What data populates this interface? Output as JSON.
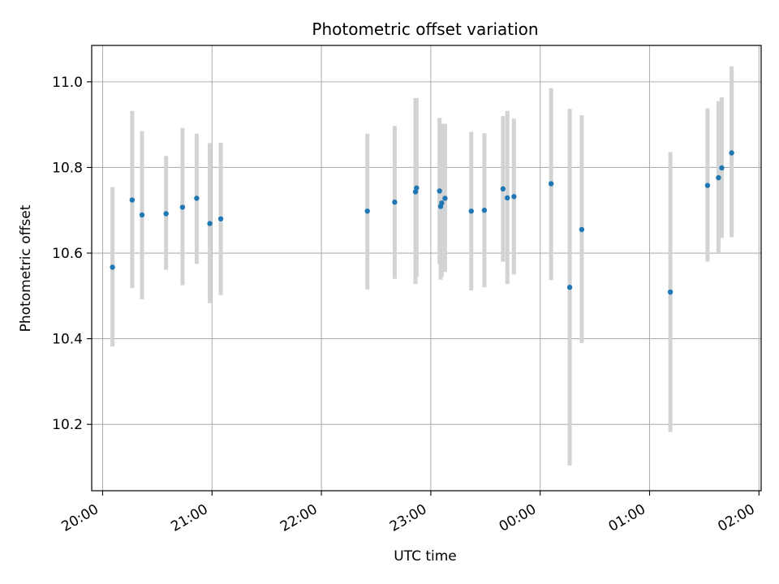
{
  "chart_data": {
    "type": "scatter",
    "title": "Photometric offset variation",
    "xlabel": "UTC time",
    "ylabel": "Photometric offset",
    "x_unit": "hours (UTC, continuing past midnight)",
    "xlim": [
      19.9,
      26.02
    ],
    "ylim": [
      10.045,
      11.085
    ],
    "x_ticks": [
      {
        "value": 20,
        "label": "20:00"
      },
      {
        "value": 21,
        "label": "21:00"
      },
      {
        "value": 22,
        "label": "22:00"
      },
      {
        "value": 23,
        "label": "23:00"
      },
      {
        "value": 24,
        "label": "00:00"
      },
      {
        "value": 25,
        "label": "01:00"
      },
      {
        "value": 26,
        "label": "02:00"
      }
    ],
    "y_ticks": [
      {
        "value": 10.2,
        "label": "10.2"
      },
      {
        "value": 10.4,
        "label": "10.4"
      },
      {
        "value": 10.6,
        "label": "10.6"
      },
      {
        "value": 10.8,
        "label": "10.8"
      },
      {
        "value": 11.0,
        "label": "11.0"
      }
    ],
    "grid": true,
    "marker_color": "#1f77b4",
    "errorbar_color": "#d3d3d3",
    "points": [
      {
        "x": 20.09,
        "y": 10.567,
        "lo": 10.382,
        "hi": 10.754
      },
      {
        "x": 20.27,
        "y": 10.724,
        "lo": 10.518,
        "hi": 10.932
      },
      {
        "x": 20.36,
        "y": 10.689,
        "lo": 10.492,
        "hi": 10.885
      },
      {
        "x": 20.58,
        "y": 10.692,
        "lo": 10.561,
        "hi": 10.827
      },
      {
        "x": 20.73,
        "y": 10.707,
        "lo": 10.525,
        "hi": 10.892
      },
      {
        "x": 20.86,
        "y": 10.728,
        "lo": 10.575,
        "hi": 10.879
      },
      {
        "x": 20.98,
        "y": 10.669,
        "lo": 10.483,
        "hi": 10.857
      },
      {
        "x": 21.08,
        "y": 10.68,
        "lo": 10.502,
        "hi": 10.858
      },
      {
        "x": 22.42,
        "y": 10.698,
        "lo": 10.515,
        "hi": 10.879
      },
      {
        "x": 22.67,
        "y": 10.719,
        "lo": 10.54,
        "hi": 10.897
      },
      {
        "x": 22.86,
        "y": 10.743,
        "lo": 10.528,
        "hi": 10.962
      },
      {
        "x": 22.87,
        "y": 10.752,
        "lo": 10.545,
        "hi": 10.962
      },
      {
        "x": 23.08,
        "y": 10.745,
        "lo": 10.575,
        "hi": 10.916
      },
      {
        "x": 23.09,
        "y": 10.709,
        "lo": 10.538,
        "hi": 10.896
      },
      {
        "x": 23.1,
        "y": 10.717,
        "lo": 10.545,
        "hi": 10.902
      },
      {
        "x": 23.13,
        "y": 10.728,
        "lo": 10.556,
        "hi": 10.902
      },
      {
        "x": 23.37,
        "y": 10.698,
        "lo": 10.513,
        "hi": 10.883
      },
      {
        "x": 23.49,
        "y": 10.7,
        "lo": 10.52,
        "hi": 10.88
      },
      {
        "x": 23.66,
        "y": 10.75,
        "lo": 10.58,
        "hi": 10.92
      },
      {
        "x": 23.7,
        "y": 10.729,
        "lo": 10.528,
        "hi": 10.932
      },
      {
        "x": 23.76,
        "y": 10.732,
        "lo": 10.55,
        "hi": 10.914
      },
      {
        "x": 24.1,
        "y": 10.762,
        "lo": 10.537,
        "hi": 10.985
      },
      {
        "x": 24.27,
        "y": 10.52,
        "lo": 10.104,
        "hi": 10.937
      },
      {
        "x": 24.38,
        "y": 10.655,
        "lo": 10.39,
        "hi": 10.922
      },
      {
        "x": 25.19,
        "y": 10.509,
        "lo": 10.182,
        "hi": 10.836
      },
      {
        "x": 25.53,
        "y": 10.758,
        "lo": 10.58,
        "hi": 10.938
      },
      {
        "x": 25.63,
        "y": 10.776,
        "lo": 10.6,
        "hi": 10.955
      },
      {
        "x": 25.66,
        "y": 10.799,
        "lo": 10.635,
        "hi": 10.964
      },
      {
        "x": 25.75,
        "y": 10.834,
        "lo": 10.637,
        "hi": 11.036
      }
    ]
  }
}
